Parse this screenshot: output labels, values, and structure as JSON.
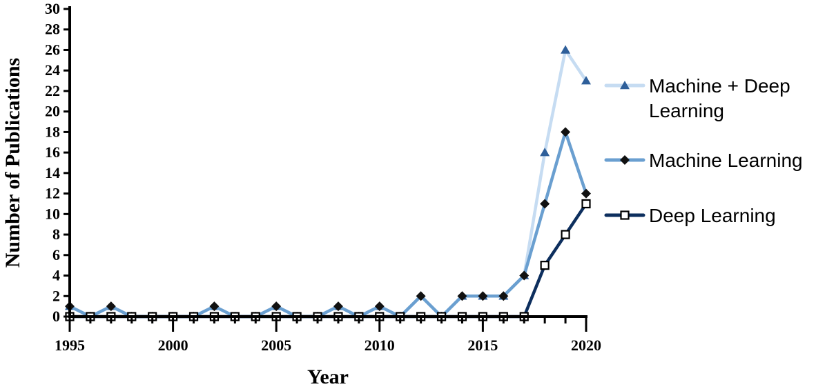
{
  "chart_data": {
    "type": "line",
    "xlabel": "Year",
    "ylabel": "Number of Publications",
    "xlim": [
      1995,
      2020
    ],
    "ylim": [
      0,
      30
    ],
    "x_ticks": [
      1995,
      2000,
      2005,
      2010,
      2015,
      2020
    ],
    "y_ticks": [
      0,
      2,
      4,
      6,
      8,
      10,
      12,
      14,
      16,
      18,
      20,
      22,
      24,
      26,
      28,
      30
    ],
    "x": [
      1995,
      1996,
      1997,
      1998,
      1999,
      2000,
      2001,
      2002,
      2003,
      2004,
      2005,
      2006,
      2007,
      2008,
      2009,
      2010,
      2011,
      2012,
      2013,
      2014,
      2015,
      2016,
      2017,
      2018,
      2019,
      2020
    ],
    "legend_position": "right",
    "series": [
      {
        "name": "Machine + Deep Learning",
        "legend_lines": [
          "Machine + Deep",
          "Learning"
        ],
        "marker": "triangle",
        "line_color": "#c6dcf2",
        "marker_color": "#2e5f9a",
        "values": [
          1,
          0,
          1,
          0,
          0,
          0,
          0,
          1,
          0,
          0,
          1,
          0,
          0,
          1,
          0,
          1,
          0,
          2,
          0,
          2,
          2,
          2,
          4,
          16,
          26,
          23
        ]
      },
      {
        "name": "Machine Learning",
        "legend_lines": [
          "Machine Learning"
        ],
        "marker": "diamond",
        "line_color": "#6a9fd0",
        "marker_color": "#111111",
        "values": [
          1,
          0,
          1,
          0,
          0,
          0,
          0,
          1,
          0,
          0,
          1,
          0,
          0,
          1,
          0,
          1,
          0,
          2,
          0,
          2,
          2,
          2,
          4,
          11,
          18,
          12
        ]
      },
      {
        "name": "Deep Learning",
        "legend_lines": [
          "Deep Learning"
        ],
        "marker": "square-open",
        "line_color": "#0d2f5e",
        "marker_color": "#000000",
        "values": [
          0,
          0,
          0,
          0,
          0,
          0,
          0,
          0,
          0,
          0,
          0,
          0,
          0,
          0,
          0,
          0,
          0,
          0,
          0,
          0,
          0,
          0,
          0,
          5,
          8,
          11
        ]
      }
    ]
  }
}
